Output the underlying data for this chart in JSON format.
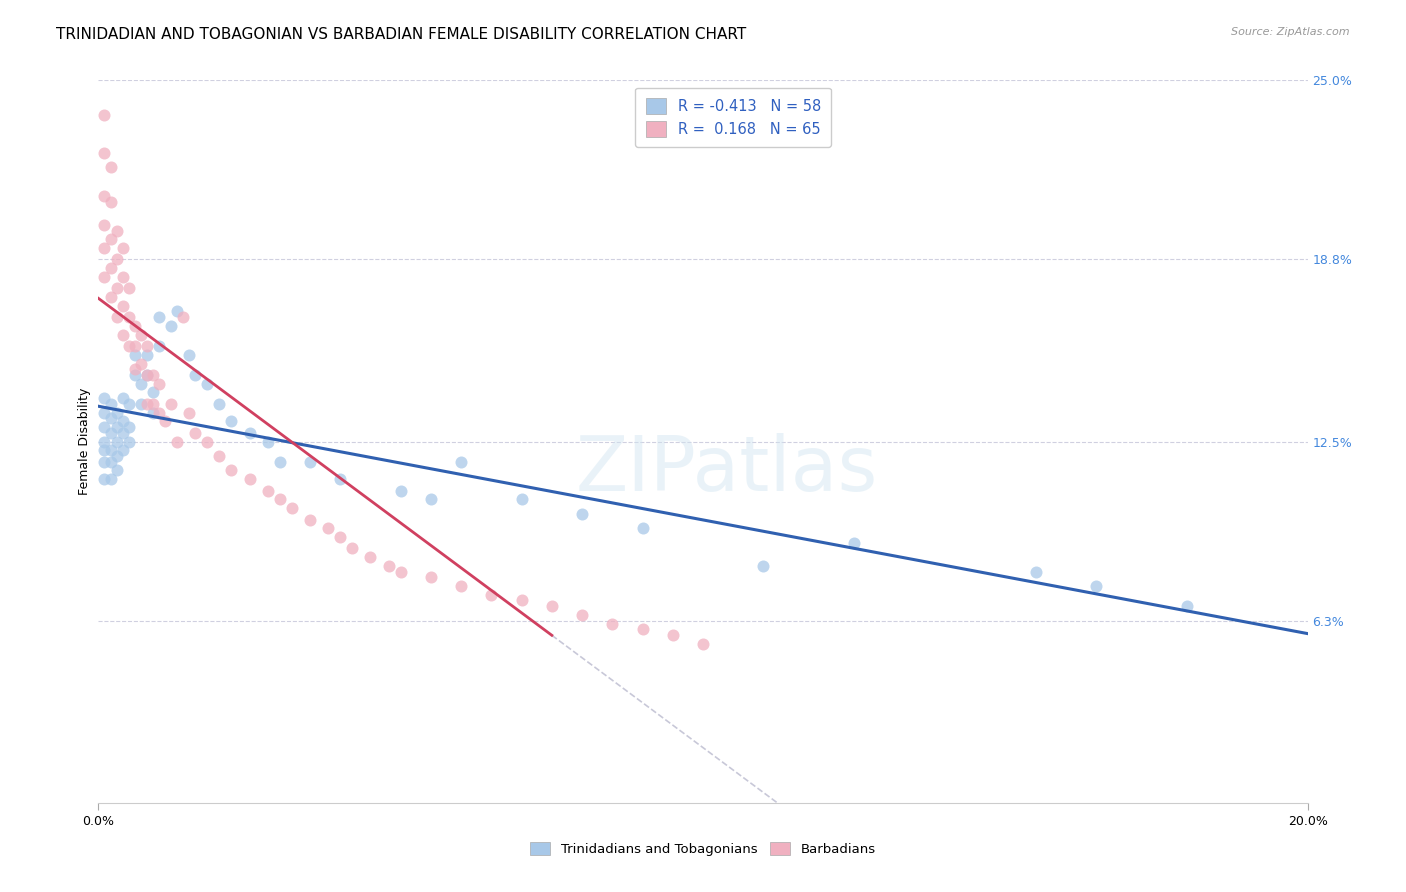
{
  "title": "TRINIDADIAN AND TOBAGONIAN VS BARBADIAN FEMALE DISABILITY CORRELATION CHART",
  "source": "Source: ZipAtlas.com",
  "ylabel": "Female Disability",
  "xlim": [
    0.0,
    0.2
  ],
  "ylim": [
    0.0,
    0.25
  ],
  "xtick_labels": [
    "0.0%",
    "20.0%"
  ],
  "xtick_positions": [
    0.0,
    0.2
  ],
  "ytick_labels": [
    "6.3%",
    "12.5%",
    "18.8%",
    "25.0%"
  ],
  "ytick_positions": [
    0.063,
    0.125,
    0.188,
    0.25
  ],
  "watermark": "ZIPatlas",
  "series1_color": "#a8c8e8",
  "series2_color": "#f0b0c0",
  "trendline1_color": "#3060b0",
  "trendline2_color": "#d04060",
  "trendline_dash_color": "#c8c8d8",
  "background_color": "#ffffff",
  "grid_color": "#d0d0e0",
  "title_fontsize": 11,
  "axis_label_fontsize": 9,
  "tick_fontsize": 9,
  "right_tick_color": "#4488dd",
  "series1_x": [
    0.001,
    0.001,
    0.001,
    0.001,
    0.001,
    0.001,
    0.001,
    0.002,
    0.002,
    0.002,
    0.002,
    0.002,
    0.002,
    0.003,
    0.003,
    0.003,
    0.003,
    0.003,
    0.004,
    0.004,
    0.004,
    0.004,
    0.005,
    0.005,
    0.005,
    0.006,
    0.006,
    0.007,
    0.007,
    0.008,
    0.008,
    0.009,
    0.009,
    0.01,
    0.01,
    0.012,
    0.013,
    0.015,
    0.016,
    0.018,
    0.02,
    0.022,
    0.025,
    0.028,
    0.03,
    0.035,
    0.04,
    0.05,
    0.055,
    0.06,
    0.07,
    0.08,
    0.09,
    0.11,
    0.125,
    0.155,
    0.165,
    0.18
  ],
  "series1_y": [
    0.14,
    0.135,
    0.13,
    0.125,
    0.122,
    0.118,
    0.112,
    0.138,
    0.133,
    0.128,
    0.122,
    0.118,
    0.112,
    0.135,
    0.13,
    0.125,
    0.12,
    0.115,
    0.14,
    0.132,
    0.128,
    0.122,
    0.138,
    0.13,
    0.125,
    0.155,
    0.148,
    0.145,
    0.138,
    0.155,
    0.148,
    0.142,
    0.135,
    0.168,
    0.158,
    0.165,
    0.17,
    0.155,
    0.148,
    0.145,
    0.138,
    0.132,
    0.128,
    0.125,
    0.118,
    0.118,
    0.112,
    0.108,
    0.105,
    0.118,
    0.105,
    0.1,
    0.095,
    0.082,
    0.09,
    0.08,
    0.075,
    0.068
  ],
  "series2_x": [
    0.001,
    0.001,
    0.001,
    0.001,
    0.001,
    0.001,
    0.002,
    0.002,
    0.002,
    0.002,
    0.002,
    0.003,
    0.003,
    0.003,
    0.003,
    0.004,
    0.004,
    0.004,
    0.004,
    0.005,
    0.005,
    0.005,
    0.006,
    0.006,
    0.006,
    0.007,
    0.007,
    0.008,
    0.008,
    0.008,
    0.009,
    0.009,
    0.01,
    0.01,
    0.011,
    0.012,
    0.013,
    0.014,
    0.015,
    0.016,
    0.018,
    0.02,
    0.022,
    0.025,
    0.028,
    0.03,
    0.032,
    0.035,
    0.038,
    0.04,
    0.042,
    0.045,
    0.048,
    0.05,
    0.055,
    0.06,
    0.065,
    0.07,
    0.075,
    0.08,
    0.085,
    0.09,
    0.095,
    0.1
  ],
  "series2_y": [
    0.238,
    0.225,
    0.21,
    0.2,
    0.192,
    0.182,
    0.22,
    0.208,
    0.195,
    0.185,
    0.175,
    0.198,
    0.188,
    0.178,
    0.168,
    0.192,
    0.182,
    0.172,
    0.162,
    0.178,
    0.168,
    0.158,
    0.165,
    0.158,
    0.15,
    0.162,
    0.152,
    0.158,
    0.148,
    0.138,
    0.148,
    0.138,
    0.145,
    0.135,
    0.132,
    0.138,
    0.125,
    0.168,
    0.135,
    0.128,
    0.125,
    0.12,
    0.115,
    0.112,
    0.108,
    0.105,
    0.102,
    0.098,
    0.095,
    0.092,
    0.088,
    0.085,
    0.082,
    0.08,
    0.078,
    0.075,
    0.072,
    0.07,
    0.068,
    0.065,
    0.062,
    0.06,
    0.058,
    0.055
  ]
}
